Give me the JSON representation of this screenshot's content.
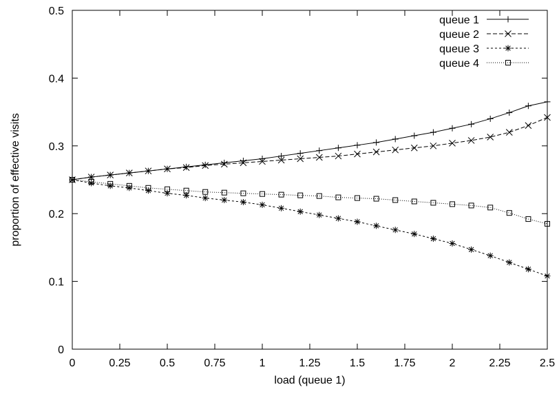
{
  "chart_data": {
    "type": "line",
    "title": "",
    "xlabel": "load (queue 1)",
    "ylabel": "proportion of effective visits",
    "xlim": [
      0,
      2.5
    ],
    "ylim": [
      0,
      0.5
    ],
    "grid": false,
    "legend_position": "top-right",
    "x_ticks": [
      0,
      0.25,
      0.5,
      0.75,
      1,
      1.25,
      1.5,
      1.75,
      2,
      2.25,
      2.5
    ],
    "x_tick_labels": [
      "0",
      "0.25",
      "0.5",
      "0.75",
      "1",
      "1.25",
      "1.5",
      "1.75",
      "2",
      "2.25",
      "2.5"
    ],
    "y_ticks": [
      0,
      0.1,
      0.2,
      0.3,
      0.4,
      0.5
    ],
    "y_tick_labels": [
      "0",
      "0.1",
      "0.2",
      "0.3",
      "0.4",
      "0.5"
    ],
    "x": [
      0,
      0.1,
      0.2,
      0.3,
      0.4,
      0.5,
      0.6,
      0.7,
      0.8,
      0.9,
      1.0,
      1.1,
      1.2,
      1.3,
      1.4,
      1.5,
      1.6,
      1.7,
      1.8,
      1.9,
      2.0,
      2.1,
      2.2,
      2.3,
      2.4,
      2.5
    ],
    "series": [
      {
        "name": "queue 1",
        "marker": "plus",
        "dash": "solid",
        "values": [
          0.25,
          0.254,
          0.257,
          0.26,
          0.263,
          0.266,
          0.269,
          0.272,
          0.275,
          0.278,
          0.281,
          0.285,
          0.289,
          0.293,
          0.297,
          0.301,
          0.305,
          0.31,
          0.315,
          0.32,
          0.326,
          0.332,
          0.34,
          0.349,
          0.359,
          0.365
        ]
      },
      {
        "name": "queue 2",
        "marker": "cross",
        "dash": "dashed",
        "values": [
          0.25,
          0.254,
          0.257,
          0.26,
          0.263,
          0.266,
          0.268,
          0.271,
          0.273,
          0.275,
          0.277,
          0.279,
          0.281,
          0.283,
          0.285,
          0.288,
          0.291,
          0.294,
          0.297,
          0.3,
          0.304,
          0.308,
          0.313,
          0.32,
          0.33,
          0.342
        ]
      },
      {
        "name": "queue 3",
        "marker": "star",
        "dash": "densedash",
        "values": [
          0.25,
          0.245,
          0.241,
          0.238,
          0.234,
          0.23,
          0.227,
          0.223,
          0.22,
          0.217,
          0.213,
          0.208,
          0.203,
          0.198,
          0.193,
          0.188,
          0.182,
          0.176,
          0.17,
          0.163,
          0.156,
          0.147,
          0.138,
          0.128,
          0.118,
          0.108
        ]
      },
      {
        "name": "queue 4",
        "marker": "square",
        "dash": "dotted",
        "values": [
          0.25,
          0.247,
          0.244,
          0.241,
          0.238,
          0.236,
          0.234,
          0.232,
          0.231,
          0.23,
          0.229,
          0.228,
          0.227,
          0.226,
          0.224,
          0.223,
          0.222,
          0.22,
          0.218,
          0.216,
          0.214,
          0.212,
          0.209,
          0.201,
          0.192,
          0.185
        ]
      }
    ]
  }
}
